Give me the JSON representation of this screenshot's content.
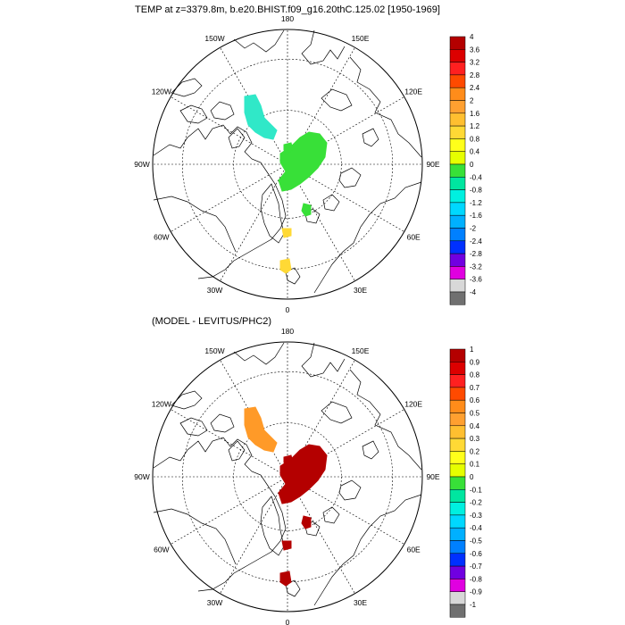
{
  "panels": [
    {
      "title": "TEMP at z=3379.8m, b.e20.BHIST.f09_g16.20thC.125.02 [1950-1969]",
      "lon_labels": [
        "180",
        "150E",
        "120E",
        "90E",
        "60E",
        "30E",
        "0",
        "30W",
        "60W",
        "90W",
        "120W",
        "150W"
      ],
      "colorbar": {
        "labels": [
          "4",
          "3.6",
          "3.2",
          "2.8",
          "2.4",
          "2",
          "1.6",
          "1.2",
          "0.8",
          "0.4",
          "0",
          "-0.4",
          "-0.8",
          "-1.2",
          "-1.6",
          "-2",
          "-2.4",
          "-2.8",
          "-3.2",
          "-3.6",
          "-4"
        ],
        "colors": [
          "#b40000",
          "#dc0000",
          "#ff2020",
          "#ff4a00",
          "#ff8c1a",
          "#ffa030",
          "#ffbf30",
          "#ffd935",
          "#ffff1a",
          "#e6ff00",
          "#38e038",
          "#00e6a0",
          "#00f0e0",
          "#00d8ff",
          "#00b0ff",
          "#0080ff",
          "#0030ff",
          "#7000e0",
          "#e000e0",
          "#d8d8d8",
          "#707070"
        ]
      }
    },
    {
      "title": "(MODEL - LEVITUS/PHC2)",
      "lon_labels": [
        "180",
        "150E",
        "120E",
        "90E",
        "60E",
        "30E",
        "0",
        "30W",
        "60W",
        "90W",
        "120W",
        "150W"
      ],
      "colorbar": {
        "labels": [
          "1",
          "0.9",
          "0.8",
          "0.7",
          "0.6",
          "0.5",
          "0.4",
          "0.3",
          "0.2",
          "0.1",
          "0",
          "-0.1",
          "-0.2",
          "-0.3",
          "-0.4",
          "-0.5",
          "-0.6",
          "-0.7",
          "-0.8",
          "-0.9",
          "-1"
        ],
        "colors": [
          "#b40000",
          "#dc0000",
          "#ff2020",
          "#ff4a00",
          "#ff8c1a",
          "#ffa030",
          "#ffbf30",
          "#ffd935",
          "#ffff1a",
          "#e6ff00",
          "#38e038",
          "#00e6a0",
          "#00f0e0",
          "#00d8ff",
          "#00b0ff",
          "#0080ff",
          "#0030ff",
          "#7000e0",
          "#e000e0",
          "#d8d8d8",
          "#707070"
        ]
      }
    }
  ],
  "field_colors": {
    "panel1": {
      "greenland_sea": "#38e038",
      "canada_basin": "#30e8c8",
      "atlantic": "#ffd935"
    },
    "panel2": {
      "greenland_sea": "#b40000",
      "canada_basin": "#ff9a28",
      "atlantic": "#b40000"
    }
  }
}
